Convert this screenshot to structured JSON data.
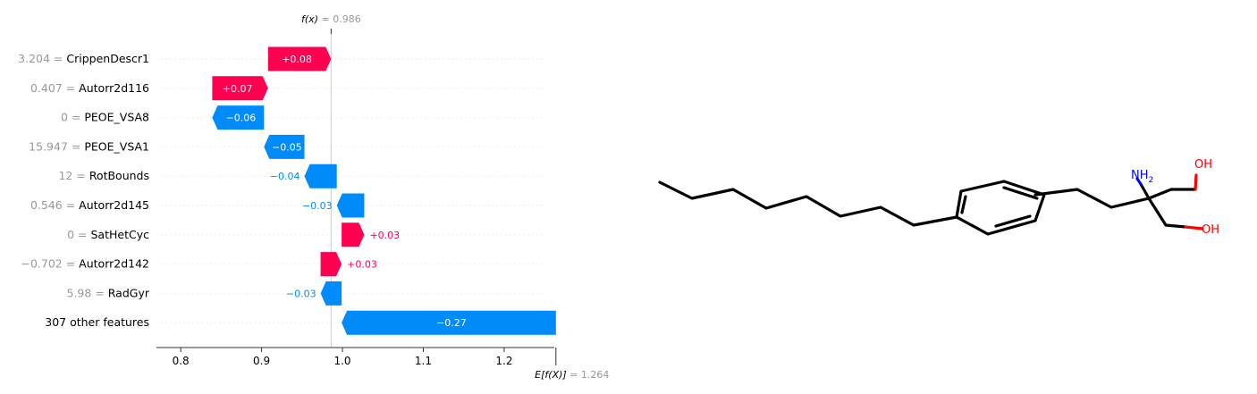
{
  "chart_data": {
    "type": "waterfall",
    "fx_label": "f(x)",
    "fx_value": "0.986",
    "base_label": "E[f(X)]",
    "base_value": "1.264",
    "fx": 0.986,
    "base": 1.264,
    "xlim": [
      0.77,
      1.262
    ],
    "xticks": [
      0.8,
      0.9,
      1.0,
      1.1,
      1.2
    ],
    "xtick_labels": [
      "0.8",
      "0.9",
      "1.0",
      "1.1",
      "1.2"
    ],
    "colors": {
      "positive": "#ff0051",
      "negative": "#008bfb",
      "feature_value": "#999999"
    },
    "features": [
      {
        "value": "3.204",
        "name": "CrippenDescr1",
        "start": 0.908,
        "end": 0.986,
        "label": "+0.08",
        "label_inside": true
      },
      {
        "value": "0.407",
        "name": "Autorr2d116",
        "start": 0.839,
        "end": 0.908,
        "label": "+0.07",
        "label_inside": true
      },
      {
        "value": "0",
        "name": "PEOE_VSA8",
        "start": 0.903,
        "end": 0.839,
        "label": "−0.06",
        "label_inside": true
      },
      {
        "value": "15.947",
        "name": "PEOE_VSA1",
        "start": 0.953,
        "end": 0.903,
        "label": "−0.05",
        "label_inside": true
      },
      {
        "value": "12",
        "name": "RotBounds",
        "start": 0.993,
        "end": 0.953,
        "label": "−0.04",
        "label_inside": false
      },
      {
        "value": "0.546",
        "name": "Autorr2d145",
        "start": 1.027,
        "end": 0.993,
        "label": "−0.03",
        "label_inside": false
      },
      {
        "value": "0",
        "name": "SatHetCyc",
        "start": 0.999,
        "end": 1.027,
        "label": "+0.03",
        "label_inside": false
      },
      {
        "value": "−0.702",
        "name": "Autorr2d142",
        "start": 0.973,
        "end": 0.999,
        "label": "+0.03",
        "label_inside": false
      },
      {
        "value": "5.98",
        "name": "RadGyr",
        "start": 0.999,
        "end": 0.973,
        "label": "−0.03",
        "label_inside": false
      },
      {
        "value": "",
        "name": "307 other features",
        "start": 1.264,
        "end": 0.999,
        "label": "−0.27",
        "label_inside": true
      }
    ]
  },
  "molecule": {
    "atom_labels": {
      "amine": "NH",
      "amine_sub": "2",
      "hydroxyl_top": "OH",
      "hydroxyl_bottom": "OH"
    },
    "colors": {
      "bond": "#000000",
      "nitrogen": "#0000ff",
      "oxygen": "#ff0000"
    }
  }
}
